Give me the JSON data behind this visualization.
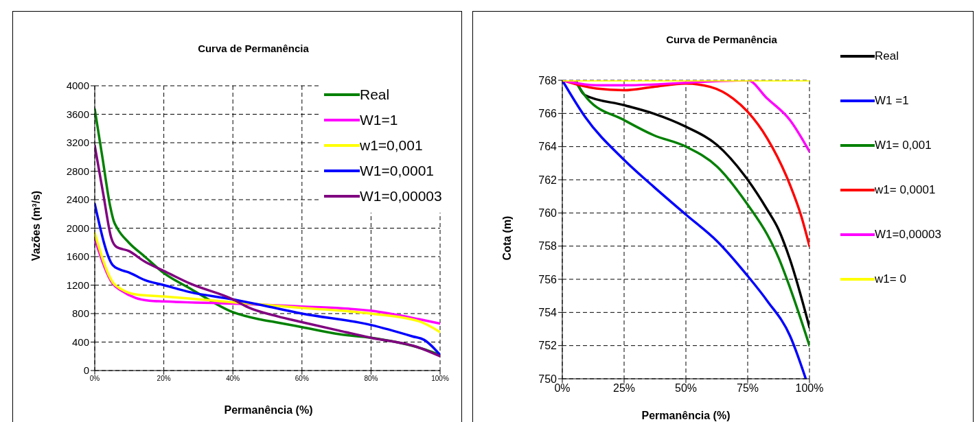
{
  "chart_data": [
    {
      "type": "line",
      "title": "Curva de Permanência",
      "xlabel": "Permanência (%)",
      "ylabel": "Vazões (m³/s)",
      "xlim": [
        0,
        100
      ],
      "xticks": [
        {
          "value": 0,
          "label": "0%"
        },
        {
          "value": 20,
          "label": "20%"
        },
        {
          "value": 40,
          "label": "40%"
        },
        {
          "value": 60,
          "label": "60%"
        },
        {
          "value": 80,
          "label": "80%"
        },
        {
          "value": 100,
          "label": "100%"
        }
      ],
      "ylim": [
        0,
        4000
      ],
      "yticks": [
        0,
        400,
        800,
        1200,
        1600,
        2000,
        2400,
        2800,
        3200,
        3600,
        4000
      ],
      "grid": true,
      "legend": "top right",
      "series": [
        {
          "name": "Real",
          "color": "#008000",
          "x": [
            0,
            2.2,
            4.5,
            5.5,
            6.5,
            9.8,
            14.5,
            20,
            27.7,
            40,
            47.6,
            52.3,
            60,
            70.8,
            80,
            93.3,
            100
          ],
          "values": [
            3670,
            3000,
            2300,
            2100,
            2000,
            1800,
            1600,
            1370,
            1150,
            820,
            720,
            680,
            610,
            510,
            460,
            330,
            220
          ]
        },
        {
          "name": "W1=1",
          "color": "#ff00ff",
          "x": [
            0,
            5.2,
            7.8,
            11.8,
            15.8,
            20,
            40,
            60,
            80,
            94,
            100
          ],
          "values": [
            1850,
            1220,
            1120,
            1020,
            980,
            970,
            940,
            900,
            840,
            720,
            660
          ]
        },
        {
          "name": "w1=0,001",
          "color": "#ffff00",
          "x": [
            0,
            5.2,
            7.8,
            11.8,
            20,
            40,
            60,
            80,
            94,
            100
          ],
          "values": [
            1930,
            1240,
            1140,
            1070,
            1040,
            960,
            880,
            800,
            690,
            540
          ]
        },
        {
          "name": "W1=0,0001",
          "color": "#0000ff",
          "x": [
            0,
            5.2,
            7.2,
            9.8,
            14.5,
            20,
            27.7,
            40,
            48.2,
            60,
            80,
            92,
            95.4,
            100
          ],
          "values": [
            2340,
            1480,
            1420,
            1380,
            1270,
            1200,
            1100,
            1000,
            920,
            800,
            640,
            480,
            430,
            220
          ]
        },
        {
          "name": "W1=0,00003",
          "color": "#800080",
          "x": [
            0,
            2.5,
            4.8,
            6.2,
            9.8,
            14.5,
            20,
            27.7,
            40,
            44.3,
            53,
            60,
            70.8,
            80,
            93.4,
            100
          ],
          "values": [
            3160,
            2470,
            1860,
            1740,
            1680,
            1530,
            1400,
            1220,
            1000,
            890,
            760,
            680,
            560,
            460,
            330,
            200
          ]
        }
      ]
    },
    {
      "type": "line",
      "title": "Curva de Permanência",
      "xlabel": "Permanência (%)",
      "ylabel": "Cota (m)",
      "xlim": [
        0,
        100
      ],
      "xticks": [
        {
          "value": 0,
          "label": "0%"
        },
        {
          "value": 25,
          "label": "25%"
        },
        {
          "value": 50,
          "label": "50%"
        },
        {
          "value": 75,
          "label": "75%"
        },
        {
          "value": 100,
          "label": "100%"
        }
      ],
      "ylim": [
        750,
        768
      ],
      "yticks": [
        750,
        752,
        754,
        756,
        758,
        760,
        762,
        764,
        766,
        768
      ],
      "grid": true,
      "legend": "right",
      "series": [
        {
          "name": "Real",
          "color": "#000000",
          "x": [
            5.5,
            9.2,
            25,
            36.8,
            50,
            62.6,
            75,
            82.9,
            87.5,
            92.1,
            100
          ],
          "values": [
            768,
            767.1,
            766.5,
            766,
            765.2,
            764.1,
            762,
            760.2,
            759,
            757.2,
            753.1
          ]
        },
        {
          "name": "W1 =1",
          "color": "#0000ff",
          "x": [
            0,
            9.2,
            25,
            36.8,
            50,
            62.6,
            75,
            82.9,
            92.1,
            98.5
          ],
          "values": [
            768,
            765.8,
            763.2,
            761.6,
            759.9,
            758.3,
            756.2,
            754.7,
            752.6,
            750
          ]
        },
        {
          "name": "W1= 0,001",
          "color": "#008000",
          "x": [
            5,
            10.1,
            25,
            36.8,
            50,
            62.6,
            75,
            82.9,
            87.5,
            92.1,
            100
          ],
          "values": [
            768,
            766.9,
            765.6,
            764.7,
            764,
            762.8,
            760.5,
            758.7,
            757.3,
            755.5,
            752
          ]
        },
        {
          "name": "w1= 0,0001",
          "color": "#ff0000",
          "x": [
            0,
            13.8,
            25,
            36.8,
            50,
            59.9,
            69.1,
            75,
            82.9,
            92.1,
            96.7,
            100
          ],
          "values": [
            768,
            767.5,
            767.4,
            767.6,
            767.8,
            767.6,
            766.9,
            766.1,
            764.5,
            761.7,
            759.8,
            758
          ]
        },
        {
          "name": "W1=0,00003",
          "color": "#ff00ff",
          "x": [
            0,
            13.8,
            25,
            36.8,
            50,
            75,
            82.9,
            92.1,
            100
          ],
          "values": [
            768,
            767.7,
            767.7,
            null,
            null,
            768,
            766.9,
            765.6,
            763.7
          ]
        },
        {
          "name": "w1= 0",
          "color": "#ffff00",
          "x": [
            0,
            100
          ],
          "values": [
            768,
            768
          ]
        }
      ]
    }
  ]
}
